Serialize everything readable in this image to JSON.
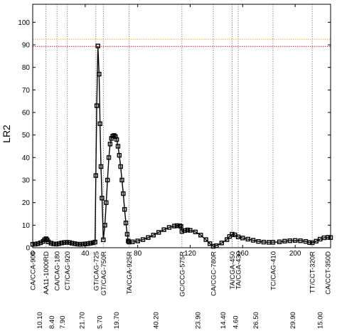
{
  "chart_data": {
    "type": "line",
    "title": "",
    "xlabel": "",
    "ylabel": "LR2",
    "xlim": [
      0,
      227
    ],
    "ylim": [
      0,
      108
    ],
    "x_ticks": [
      0,
      40,
      80,
      120,
      160,
      200
    ],
    "y_ticks": [
      0,
      10,
      20,
      30,
      40,
      50,
      60,
      70,
      80,
      90,
      100
    ],
    "grid": false,
    "thresholds": [
      {
        "value": 92.5,
        "color": "#f5a623",
        "style": "dotted"
      },
      {
        "value": 89.3,
        "color": "#e02020",
        "style": "dotted"
      }
    ],
    "markers": [
      {
        "x": 0.0,
        "label": "CA/CCA-905",
        "dist": "10.10"
      },
      {
        "x": 10.1,
        "label": "AA11-1000RD",
        "dist": "8.40"
      },
      {
        "x": 18.5,
        "label": "CA/CAG-180",
        "dist": "7.90"
      },
      {
        "x": 26.4,
        "label": "CT/CAG-920",
        "dist": "21.70"
      },
      {
        "x": 48.1,
        "label": "GT/CAG-725",
        "dist": "5.70"
      },
      {
        "x": 53.8,
        "label": "GT/CAG-750R",
        "dist": "19.70"
      },
      {
        "x": 73.5,
        "label": "TA/CGA-925R",
        "dist": "40.20"
      },
      {
        "x": 113.7,
        "label": "GC/CCG-575R",
        "dist": "23.90"
      },
      {
        "x": 137.6,
        "label": "CA/CGC-780R",
        "dist": "14.40"
      },
      {
        "x": 152.0,
        "label": "TA/CGA-450",
        "dist": "4.60"
      },
      {
        "x": 156.6,
        "label": "TA/CGA-430",
        "dist": "26.50"
      },
      {
        "x": 183.1,
        "label": "TC/CAG-410",
        "dist": "29.90"
      },
      {
        "x": 213.0,
        "label": "TT/CCT-320R",
        "dist": "15.00"
      },
      {
        "x": 228.0,
        "label": "CA/CCT-350D",
        "dist": ""
      }
    ],
    "series": [
      {
        "color": "#000000",
        "points": [
          [
            0,
            1.5
          ],
          [
            2,
            1.6
          ],
          [
            4,
            1.8
          ],
          [
            6,
            2.2
          ],
          [
            8,
            2.8
          ],
          [
            9,
            3.5
          ],
          [
            10.1,
            4
          ],
          [
            11,
            3.5
          ],
          [
            12,
            2.6
          ],
          [
            14,
            2.0
          ],
          [
            16,
            1.7
          ],
          [
            18,
            1.6
          ],
          [
            20,
            1.8
          ],
          [
            22,
            2.1
          ],
          [
            24,
            2.3
          ],
          [
            26,
            2.4
          ],
          [
            28,
            2.3
          ],
          [
            30,
            2.0
          ],
          [
            32,
            1.8
          ],
          [
            34,
            1.6
          ],
          [
            36,
            1.5
          ],
          [
            38,
            1.6
          ],
          [
            40,
            1.7
          ],
          [
            42,
            1.8
          ],
          [
            44,
            2.0
          ],
          [
            46,
            2.2
          ],
          [
            47.5,
            2.5
          ],
          [
            48.1,
            32
          ],
          [
            48.8,
            63
          ],
          [
            49.7,
            89.5
          ],
          [
            50.6,
            77
          ],
          [
            51.3,
            55
          ],
          [
            52.0,
            36
          ],
          [
            52.8,
            22
          ],
          [
            53.8,
            3.5
          ],
          [
            55,
            10
          ],
          [
            56,
            20
          ],
          [
            57,
            30
          ],
          [
            58,
            40
          ],
          [
            59,
            46
          ],
          [
            60,
            48.5
          ],
          [
            61,
            49.5
          ],
          [
            62,
            49.8
          ],
          [
            63,
            49.3
          ],
          [
            64,
            48
          ],
          [
            65,
            45
          ],
          [
            66,
            41
          ],
          [
            67,
            36
          ],
          [
            68,
            30
          ],
          [
            69,
            24
          ],
          [
            70,
            17
          ],
          [
            71,
            11
          ],
          [
            72,
            6
          ],
          [
            72.8,
            3
          ],
          [
            73.5,
            2.5
          ],
          [
            76,
            2.6
          ],
          [
            80,
            3.0
          ],
          [
            84,
            3.6
          ],
          [
            88,
            4.5
          ],
          [
            92,
            5.6
          ],
          [
            96,
            6.8
          ],
          [
            100,
            8.0
          ],
          [
            104,
            9.0
          ],
          [
            108,
            9.6
          ],
          [
            110,
            9.8
          ],
          [
            112,
            9.7
          ],
          [
            113,
            9.4
          ],
          [
            113.7,
            7.2
          ],
          [
            116,
            7.6
          ],
          [
            118,
            7.9
          ],
          [
            120,
            7.7
          ],
          [
            124,
            7.0
          ],
          [
            128,
            5.6
          ],
          [
            132,
            3.6
          ],
          [
            135,
            1.8
          ],
          [
            137.6,
            0.6
          ],
          [
            140,
            0.9
          ],
          [
            144,
            2.1
          ],
          [
            148,
            3.6
          ],
          [
            150,
            5.0
          ],
          [
            152,
            6.0
          ],
          [
            154,
            5.7
          ],
          [
            156.6,
            4.8
          ],
          [
            160,
            4.3
          ],
          [
            164,
            3.8
          ],
          [
            168,
            3.3
          ],
          [
            172,
            2.8
          ],
          [
            176,
            2.5
          ],
          [
            180,
            2.4
          ],
          [
            183.1,
            2.4
          ],
          [
            188,
            2.6
          ],
          [
            192,
            2.9
          ],
          [
            196,
            3.1
          ],
          [
            200,
            3.2
          ],
          [
            204,
            3.1
          ],
          [
            208,
            2.8
          ],
          [
            211,
            2.3
          ],
          [
            213,
            2.2
          ],
          [
            216,
            2.9
          ],
          [
            219,
            3.8
          ],
          [
            222,
            4.4
          ],
          [
            225,
            4.6
          ],
          [
            227,
            4.5
          ]
        ]
      }
    ]
  }
}
